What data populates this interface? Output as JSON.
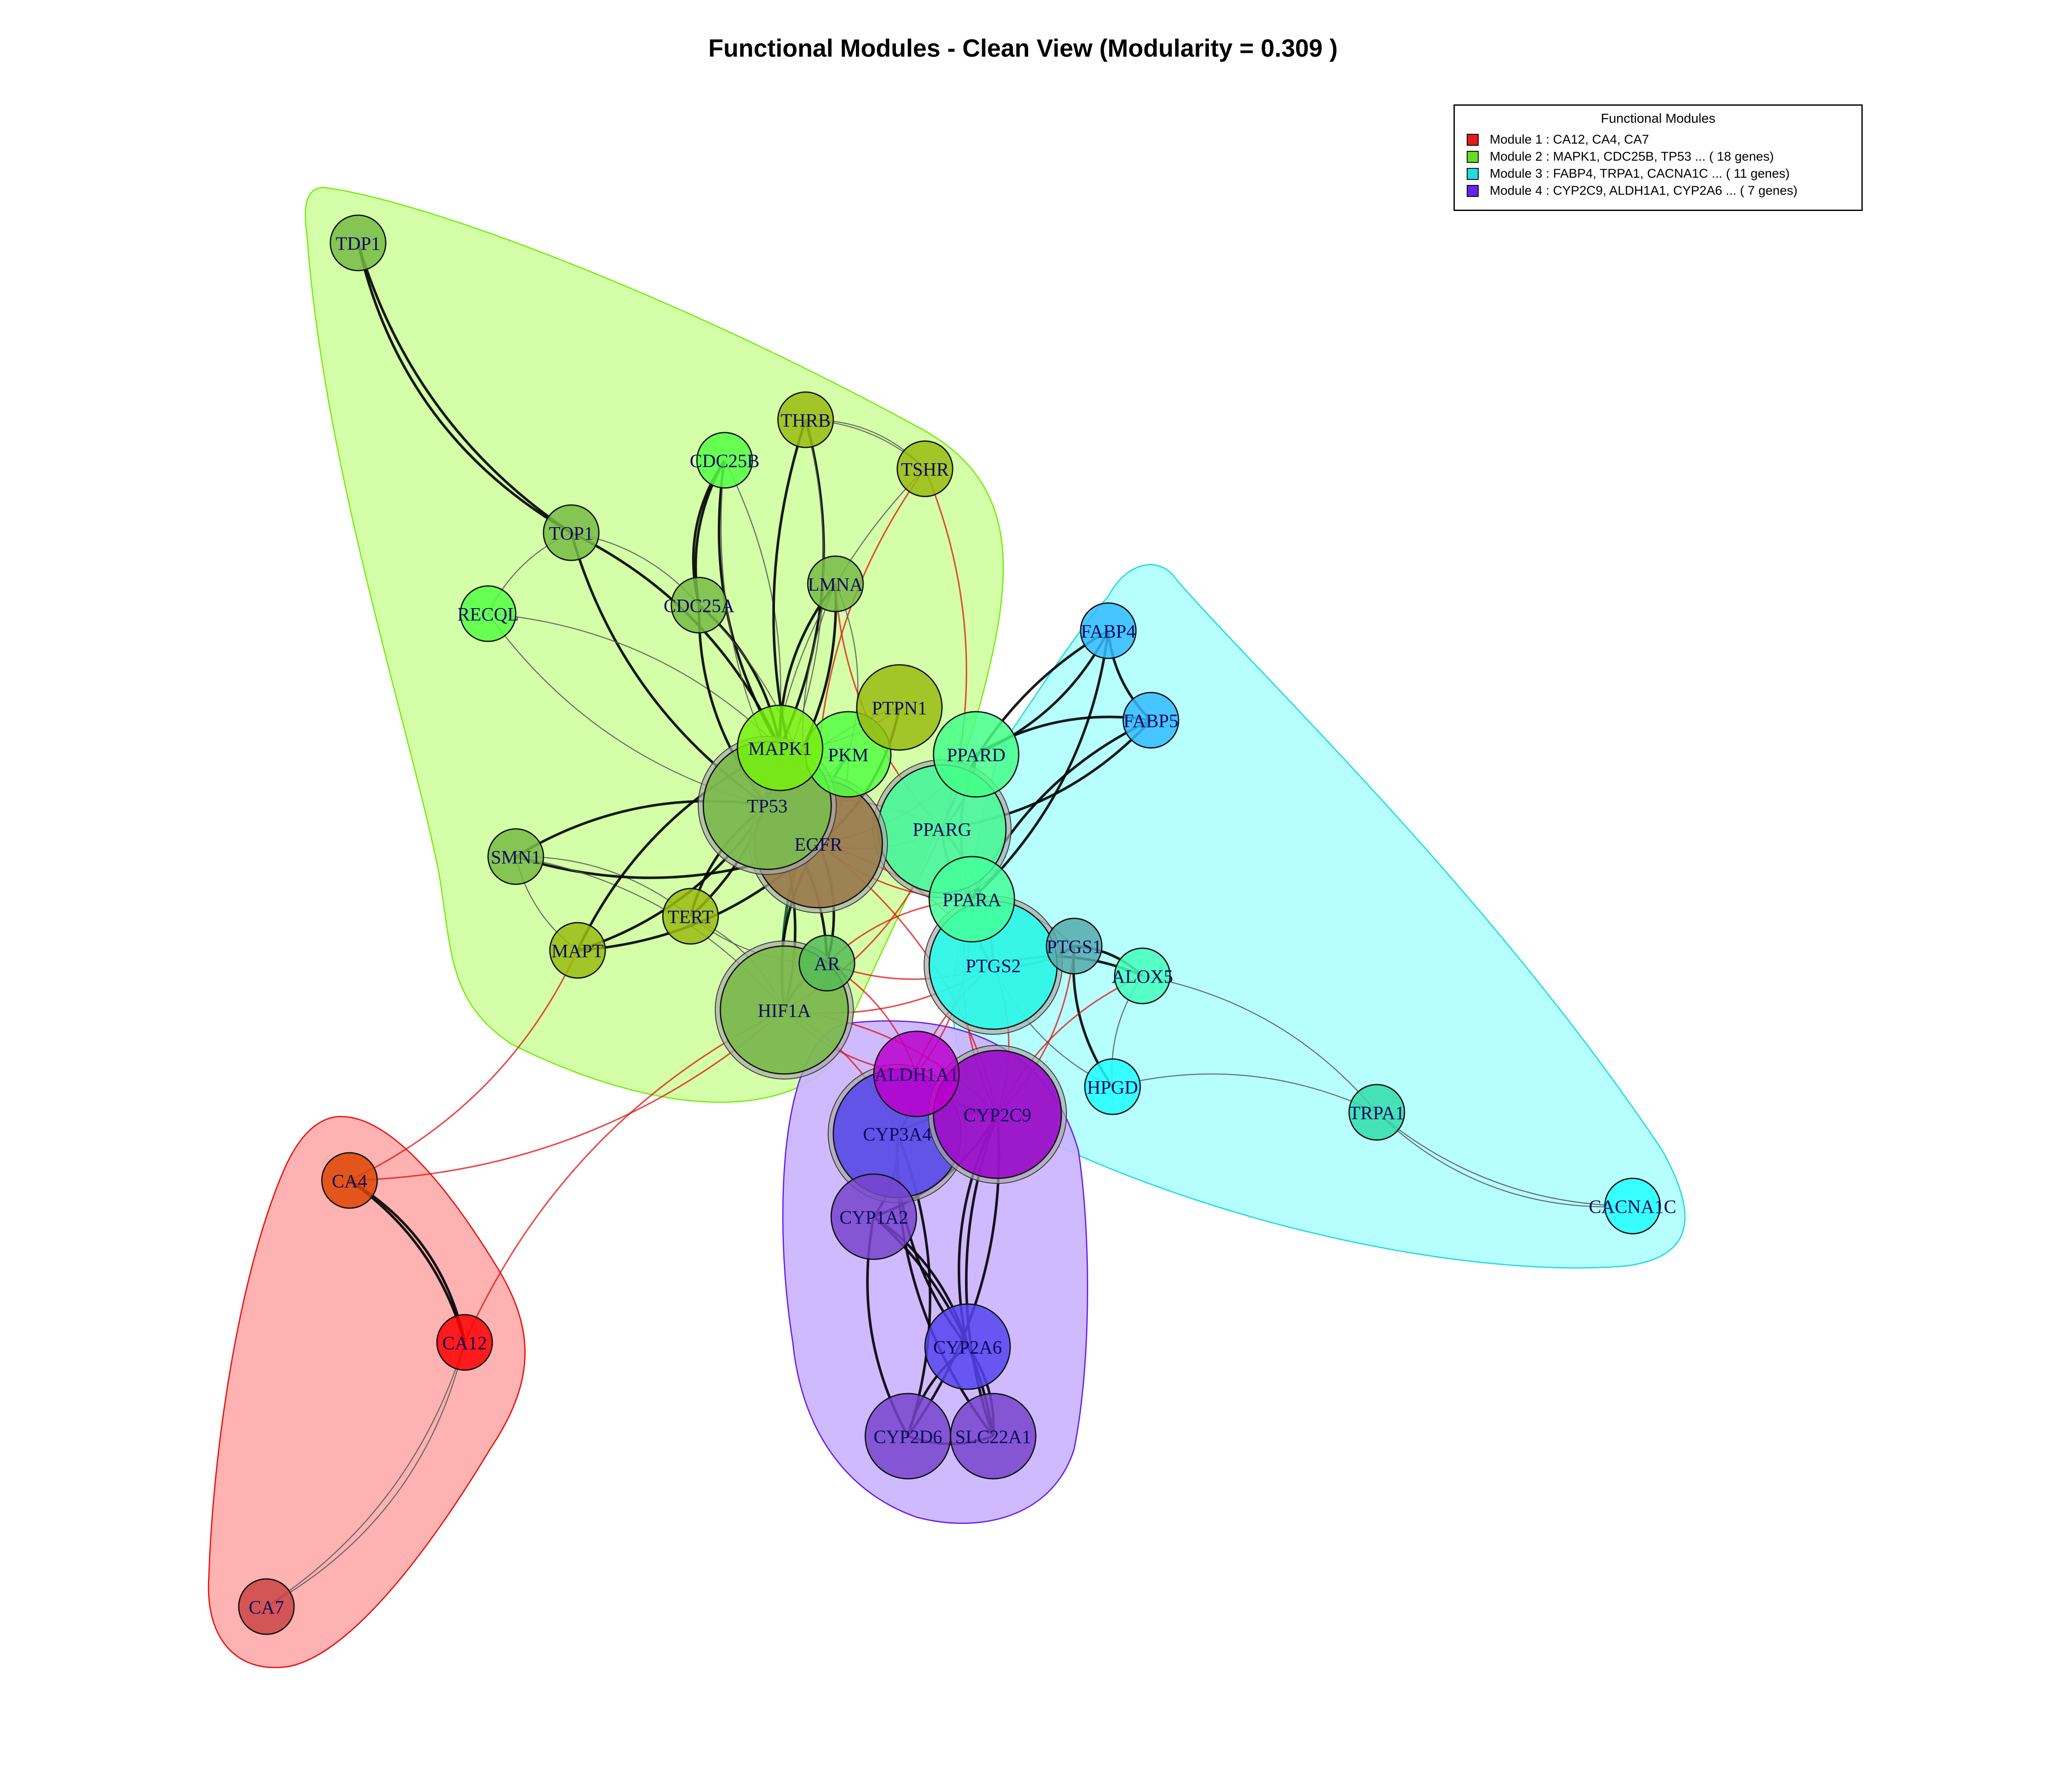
{
  "title": "Functional Modules - Clean View (Modularity = 0.309 )",
  "legend": {
    "title": "Functional Modules",
    "items": [
      {
        "label": "Module 1 : CA12, CA4, CA7",
        "color": "#e41a1c"
      },
      {
        "label": "Module 2 : MAPK1, CDC25B, TP53 ... ( 18 genes)",
        "color": "#66dd22"
      },
      {
        "label": "Module 3 : FABP4, TRPA1, CACNA1C ... ( 11 genes)",
        "color": "#22dddd"
      },
      {
        "label": "Module 4 : CYP2C9, ALDH1A1, CYP2A6 ... ( 7 genes)",
        "color": "#6622ee"
      }
    ]
  },
  "nodes": [
    {
      "id": "TDP1",
      "label": "TDP1",
      "module": 2,
      "color": "#77bb44",
      "size": "small"
    },
    {
      "id": "THRB",
      "label": "THRB",
      "module": 2,
      "color": "#99bb11",
      "size": "small"
    },
    {
      "id": "CDC25B",
      "label": "CDC25B",
      "module": 2,
      "color": "#55ff44",
      "size": "small"
    },
    {
      "id": "TSHR",
      "label": "TSHR",
      "module": 2,
      "color": "#99bb11",
      "size": "small"
    },
    {
      "id": "TOP1",
      "label": "TOP1",
      "module": 2,
      "color": "#77bb44",
      "size": "small"
    },
    {
      "id": "RECQL",
      "label": "RECQL",
      "module": 2,
      "color": "#55ff44",
      "size": "small"
    },
    {
      "id": "CDC25A",
      "label": "CDC25A",
      "module": 2,
      "color": "#77bb44",
      "size": "small"
    },
    {
      "id": "LMNA",
      "label": "LMNA",
      "module": 2,
      "color": "#77bb44",
      "size": "small"
    },
    {
      "id": "PTPN1",
      "label": "PTPN1",
      "module": 2,
      "color": "#99bb11",
      "size": "medium"
    },
    {
      "id": "MAPK1",
      "label": "MAPK1",
      "module": 2,
      "color": "#77ee11",
      "size": "medium"
    },
    {
      "id": "PKM",
      "label": "PKM",
      "module": 2,
      "color": "#55ff44",
      "size": "medium"
    },
    {
      "id": "TP53",
      "label": "TP53",
      "module": 2,
      "color": "#77bb44",
      "size": "large"
    },
    {
      "id": "EGFR",
      "label": "EGFR",
      "module": 2,
      "color": "#997744",
      "size": "large"
    },
    {
      "id": "SMN1",
      "label": "SMN1",
      "module": 2,
      "color": "#77bb44",
      "size": "small"
    },
    {
      "id": "TERT",
      "label": "TERT",
      "module": 2,
      "color": "#99bb11",
      "size": "small"
    },
    {
      "id": "MAPT",
      "label": "MAPT",
      "module": 2,
      "color": "#99bb11",
      "size": "small"
    },
    {
      "id": "AR",
      "label": "AR",
      "module": 2,
      "color": "#55bb55",
      "size": "small"
    },
    {
      "id": "HIF1A",
      "label": "HIF1A",
      "module": 2,
      "color": "#77bb44",
      "size": "large"
    },
    {
      "id": "FABP4",
      "label": "FABP4",
      "module": 3,
      "color": "#33bbff",
      "size": "small"
    },
    {
      "id": "FABP5",
      "label": "FABP5",
      "module": 3,
      "color": "#33bbff",
      "size": "small"
    },
    {
      "id": "PPARD",
      "label": "PPARD",
      "module": 3,
      "color": "#44ff88",
      "size": "medium"
    },
    {
      "id": "PPARG",
      "label": "PPARG",
      "module": 3,
      "color": "#44ff99",
      "size": "large"
    },
    {
      "id": "PPARA",
      "label": "PPARA",
      "module": 3,
      "color": "#44ff99",
      "size": "medium"
    },
    {
      "id": "PTGS1",
      "label": "PTGS1",
      "module": 3,
      "color": "#55aaaa",
      "size": "small"
    },
    {
      "id": "ALOX5",
      "label": "ALOX5",
      "module": 3,
      "color": "#44ffbb",
      "size": "small"
    },
    {
      "id": "PTGS2",
      "label": "PTGS2",
      "module": 3,
      "color": "#22ffee",
      "size": "large"
    },
    {
      "id": "HPGD",
      "label": "HPGD",
      "module": 3,
      "color": "#22ffff",
      "size": "small"
    },
    {
      "id": "TRPA1",
      "label": "TRPA1",
      "module": 3,
      "color": "#33ddaa",
      "size": "small"
    },
    {
      "id": "CACNA1C",
      "label": "CACNA1C",
      "module": 3,
      "color": "#22ffff",
      "size": "small"
    },
    {
      "id": "ALDH1A1",
      "label": "ALDH1A1",
      "module": 4,
      "color": "#bb00cc",
      "size": "medium"
    },
    {
      "id": "CYP2C9",
      "label": "CYP2C9",
      "module": 4,
      "color": "#9900cc",
      "size": "large"
    },
    {
      "id": "CYP3A4",
      "label": "CYP3A4",
      "module": 4,
      "color": "#5544ee",
      "size": "large"
    },
    {
      "id": "CYP1A2",
      "label": "CYP1A2",
      "module": 4,
      "color": "#7744cc",
      "size": "medium"
    },
    {
      "id": "CYP2A6",
      "label": "CYP2A6",
      "module": 4,
      "color": "#5544ee",
      "size": "medium"
    },
    {
      "id": "CYP2D6",
      "label": "CYP2D6",
      "module": 4,
      "color": "#7744cc",
      "size": "medium"
    },
    {
      "id": "SLC22A1",
      "label": "SLC22A1",
      "module": 4,
      "color": "#7744cc",
      "size": "medium"
    },
    {
      "id": "CA4",
      "label": "CA4",
      "module": 1,
      "color": "#dd4400",
      "size": "small"
    },
    {
      "id": "CA12",
      "label": "CA12",
      "module": 1,
      "color": "#ff0000",
      "size": "small"
    },
    {
      "id": "CA7",
      "label": "CA7",
      "module": 1,
      "color": "#cc4444",
      "size": "small"
    }
  ],
  "edges": [
    [
      "TDP1",
      "TOP1",
      "strong"
    ],
    [
      "TDP1",
      "TOP1",
      "strong"
    ],
    [
      "TOP1",
      "RECQL",
      "weak"
    ],
    [
      "TOP1",
      "CDC25A",
      "weak"
    ],
    [
      "TOP1",
      "TP53",
      "strong"
    ],
    [
      "TOP1",
      "MAPK1",
      "strong"
    ],
    [
      "RECQL",
      "TP53",
      "weak"
    ],
    [
      "RECQL",
      "MAPK1",
      "weak"
    ],
    [
      "CDC25B",
      "CDC25A",
      "strong"
    ],
    [
      "CDC25B",
      "CDC25A",
      "strong"
    ],
    [
      "CDC25B",
      "MAPK1",
      "strong"
    ],
    [
      "CDC25B",
      "TP53",
      "weak"
    ],
    [
      "CDC25B",
      "EGFR",
      "weak"
    ],
    [
      "THRB",
      "TSHR",
      "weak"
    ],
    [
      "THRB",
      "TSHR",
      "weak"
    ],
    [
      "THRB",
      "MAPK1",
      "strong"
    ],
    [
      "THRB",
      "EGFR",
      "strong"
    ],
    [
      "THRB",
      "TP53",
      "weak"
    ],
    [
      "TSHR",
      "EGFR",
      "red"
    ],
    [
      "TSHR",
      "PPARG",
      "red"
    ],
    [
      "TSHR",
      "TP53",
      "weak"
    ],
    [
      "CDC25A",
      "MAPK1",
      "strong"
    ],
    [
      "CDC25A",
      "TP53",
      "strong"
    ],
    [
      "CDC25A",
      "EGFR",
      "weak"
    ],
    [
      "LMNA",
      "MAPK1",
      "strong"
    ],
    [
      "LMNA",
      "TP53",
      "strong"
    ],
    [
      "LMNA",
      "EGFR",
      "weak"
    ],
    [
      "LMNA",
      "PKM",
      "weak"
    ],
    [
      "LMNA",
      "PPARG",
      "red"
    ],
    [
      "PTPN1",
      "EGFR",
      "strong"
    ],
    [
      "PTPN1",
      "TP53",
      "weak"
    ],
    [
      "PTPN1",
      "MAPK1",
      "weak"
    ],
    [
      "MAPK1",
      "TP53",
      "strong"
    ],
    [
      "MAPK1",
      "EGFR",
      "strong"
    ],
    [
      "MAPK1",
      "PKM",
      "weak"
    ],
    [
      "PKM",
      "EGFR",
      "weak"
    ],
    [
      "PKM",
      "HIF1A",
      "green"
    ],
    [
      "PKM",
      "TP53",
      "weak"
    ],
    [
      "TP53",
      "EGFR",
      "strong"
    ],
    [
      "TP53",
      "HIF1A",
      "strong"
    ],
    [
      "TP53",
      "SMN1",
      "strong"
    ],
    [
      "TP53",
      "MAPT",
      "strong"
    ],
    [
      "TP53",
      "TERT",
      "strong"
    ],
    [
      "TP53",
      "AR",
      "strong"
    ],
    [
      "EGFR",
      "HIF1A",
      "strong"
    ],
    [
      "EGFR",
      "AR",
      "strong"
    ],
    [
      "EGFR",
      "PPARG",
      "red"
    ],
    [
      "EGFR",
      "PTGS2",
      "red"
    ],
    [
      "EGFR",
      "PPARA",
      "red"
    ],
    [
      "EGFR",
      "CYP2C9",
      "red"
    ],
    [
      "SMN1",
      "MAPT",
      "weak"
    ],
    [
      "SMN1",
      "TERT",
      "weak"
    ],
    [
      "SMN1",
      "EGFR",
      "strong"
    ],
    [
      "SMN1",
      "HIF1A",
      "weak"
    ],
    [
      "TERT",
      "MAPK1",
      "strong"
    ],
    [
      "TERT",
      "HIF1A",
      "weak"
    ],
    [
      "TERT",
      "AR",
      "weak"
    ],
    [
      "MAPT",
      "MAPK1",
      "strong"
    ],
    [
      "MAPT",
      "EGFR",
      "strong"
    ],
    [
      "MAPT",
      "CA4",
      "red"
    ],
    [
      "AR",
      "HIF1A",
      "strong"
    ],
    [
      "AR",
      "PPARA",
      "red"
    ],
    [
      "AR",
      "PTGS2",
      "red"
    ],
    [
      "AR",
      "ALDH1A1",
      "red"
    ],
    [
      "HIF1A",
      "CA12",
      "red"
    ],
    [
      "HIF1A",
      "CA4",
      "red"
    ],
    [
      "HIF1A",
      "PTGS2",
      "red"
    ],
    [
      "HIF1A",
      "CYP2C9",
      "red"
    ],
    [
      "HIF1A",
      "ALDH1A1",
      "red"
    ],
    [
      "HIF1A",
      "CYP3A4",
      "red"
    ],
    [
      "FABP4",
      "FABP5",
      "strong"
    ],
    [
      "FABP4",
      "PPARD",
      "strong"
    ],
    [
      "FABP4",
      "PPARG",
      "strong"
    ],
    [
      "FABP4",
      "PPARA",
      "strong"
    ],
    [
      "FABP5",
      "PPARD",
      "strong"
    ],
    [
      "FABP5",
      "PPARG",
      "strong"
    ],
    [
      "FABP5",
      "PPARA",
      "strong"
    ],
    [
      "PPARD",
      "PPARG",
      "strong"
    ],
    [
      "PPARD",
      "PPARA",
      "strong"
    ],
    [
      "PPARD",
      "EGFR",
      "red"
    ],
    [
      "PPARG",
      "PPARA",
      "strong"
    ],
    [
      "PPARG",
      "PTGS2",
      "strong"
    ],
    [
      "PPARG",
      "TP53",
      "red"
    ],
    [
      "PPARG",
      "HIF1A",
      "red"
    ],
    [
      "PPARA",
      "PTGS2",
      "strong"
    ],
    [
      "PPARA",
      "PTGS1",
      "weak"
    ],
    [
      "PPARA",
      "CYP2C9",
      "red"
    ],
    [
      "PPARA",
      "ALDH1A1",
      "red"
    ],
    [
      "PTGS2",
      "PTGS1",
      "strong"
    ],
    [
      "PTGS2",
      "ALOX5",
      "strong"
    ],
    [
      "PTGS2",
      "HPGD",
      "weak"
    ],
    [
      "PTGS2",
      "CYP2C9",
      "red"
    ],
    [
      "PTGS2",
      "CYP3A4",
      "red"
    ],
    [
      "PTGS1",
      "ALOX5",
      "strong"
    ],
    [
      "PTGS1",
      "HPGD",
      "strong"
    ],
    [
      "PTGS1",
      "CYP2C9",
      "red"
    ],
    [
      "ALOX5",
      "HPGD",
      "weak"
    ],
    [
      "ALOX5",
      "TRPA1",
      "weak"
    ],
    [
      "ALOX5",
      "CYP2C9",
      "red"
    ],
    [
      "HPGD",
      "TRPA1",
      "weak"
    ],
    [
      "TRPA1",
      "CACNA1C",
      "weak"
    ],
    [
      "TRPA1",
      "CACNA1C",
      "weak"
    ],
    [
      "ALDH1A1",
      "CYP2C9",
      "strong"
    ],
    [
      "ALDH1A1",
      "CYP3A4",
      "strong"
    ],
    [
      "CYP2C9",
      "CYP3A4",
      "strong"
    ],
    [
      "CYP2C9",
      "CYP1A2",
      "strong"
    ],
    [
      "CYP2C9",
      "CYP2A6",
      "strong"
    ],
    [
      "CYP2C9",
      "CYP2D6",
      "strong"
    ],
    [
      "CYP2C9",
      "SLC22A1",
      "strong"
    ],
    [
      "CYP3A4",
      "CYP1A2",
      "strong"
    ],
    [
      "CYP3A4",
      "CYP2A6",
      "strong"
    ],
    [
      "CYP3A4",
      "CYP2D6",
      "strong"
    ],
    [
      "CYP3A4",
      "SLC22A1",
      "strong"
    ],
    [
      "CYP1A2",
      "CYP2A6",
      "strong"
    ],
    [
      "CYP1A2",
      "CYP2D6",
      "strong"
    ],
    [
      "CYP1A2",
      "SLC22A1",
      "strong"
    ],
    [
      "CYP2A6",
      "CYP2D6",
      "strong"
    ],
    [
      "CYP2A6",
      "SLC22A1",
      "strong"
    ],
    [
      "CYP2D6",
      "SLC22A1",
      "strong"
    ],
    [
      "CA4",
      "CA12",
      "strong"
    ],
    [
      "CA4",
      "CA12",
      "strong"
    ],
    [
      "CA12",
      "CA7",
      "weak"
    ],
    [
      "CA12",
      "CA7",
      "weak"
    ]
  ]
}
